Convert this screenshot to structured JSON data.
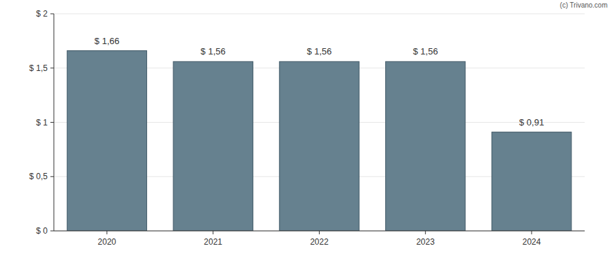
{
  "chart_data": {
    "type": "bar",
    "categories": [
      "2020",
      "2021",
      "2022",
      "2023",
      "2024"
    ],
    "values": [
      1.66,
      1.56,
      1.56,
      1.56,
      0.91
    ],
    "value_labels": [
      "$ 1,66",
      "$ 1,56",
      "$ 1,56",
      "$ 1,56",
      "$ 0,91"
    ],
    "data_labels": true,
    "color": "#66818f",
    "ylim": [
      0,
      2
    ],
    "yticks": [
      {
        "value": 0,
        "label": "$ 0"
      },
      {
        "value": 0.5,
        "label": "$ 0,5"
      },
      {
        "value": 1,
        "label": "$ 1"
      },
      {
        "value": 1.5,
        "label": "$ 1,5"
      },
      {
        "value": 2,
        "label": "$ 2"
      }
    ],
    "grid": true,
    "annotations": [
      "(c) Trivano.com"
    ]
  }
}
